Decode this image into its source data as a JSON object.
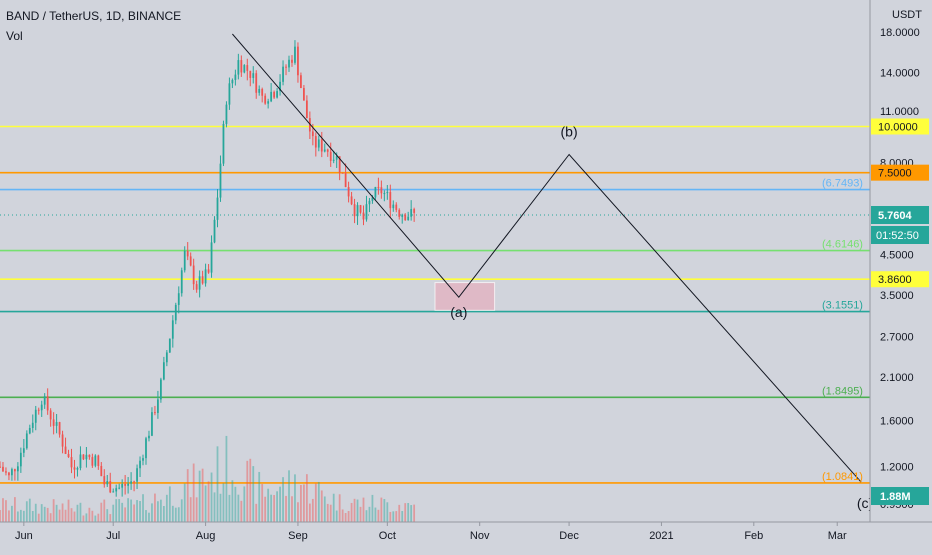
{
  "header": {
    "symbol_line": "BAND / TetherUS, 1D, BINANCE",
    "indicator": "Vol"
  },
  "price_axis": {
    "currency": "USDT",
    "ticks": [
      "18.0000",
      "14.0000",
      "11.0000",
      "8.0000",
      "4.5000",
      "3.5000",
      "2.7000",
      "2.1000",
      "1.6000",
      "1.2000",
      "0.9500"
    ]
  },
  "time_axis": {
    "labels": [
      "Jun",
      "Jul",
      "Aug",
      "Sep",
      "Oct",
      "Nov",
      "Dec",
      "2021",
      "Feb",
      "Mar"
    ]
  },
  "chart_data": {
    "type": "candlestick",
    "scale": "log",
    "ylim": [
      0.85,
      22
    ],
    "xlim": [
      "2020-05-24",
      "2021-03-12"
    ],
    "horizontal_levels": [
      {
        "value": 10.0,
        "label": "10.0000",
        "color": "#ffff3b",
        "label_style": "badge"
      },
      {
        "value": 7.5,
        "label": "7.5000",
        "color": "#ff9800",
        "label_style": "badge"
      },
      {
        "value": 6.7493,
        "label": "(6.7493)",
        "color": "#64b5f6",
        "label_style": "text"
      },
      {
        "value": 4.6146,
        "label": "(4.6146)",
        "color": "#76e070",
        "label_style": "text"
      },
      {
        "value": 3.86,
        "label": "3.8600",
        "color": "#ffff3b",
        "label_style": "badge"
      },
      {
        "value": 3.1551,
        "label": "(3.1551)",
        "color": "#26a69a",
        "label_style": "text"
      },
      {
        "value": 1.8495,
        "label": "(1.8495)",
        "color": "#4caf50",
        "label_style": "text"
      },
      {
        "value": 1.0841,
        "label": "(1.0841)",
        "color": "#ff9800",
        "label_style": "text"
      }
    ],
    "current_price": {
      "value": 5.7604,
      "label": "5.7604",
      "countdown": "01:52:50",
      "color": "#26a69a"
    },
    "volume_badge": "1.88M",
    "wave_path": [
      {
        "date": "2020-08-10",
        "price": 17.8
      },
      {
        "date": "2020-10-25",
        "price": 3.45,
        "label": "(a)"
      },
      {
        "date": "2020-12-01",
        "price": 8.4,
        "label": "(b)"
      },
      {
        "date": "2021-03-09",
        "price": 1.09,
        "label": "(c)"
      }
    ],
    "target_zone": {
      "from": "2020-10-17",
      "to": "2020-11-06",
      "high": 3.78,
      "low": 3.18
    },
    "price_path": [
      [
        "2020-05-24",
        1.2
      ],
      [
        "2020-05-27",
        1.12
      ],
      [
        "2020-05-30",
        1.25
      ],
      [
        "2020-06-03",
        1.55
      ],
      [
        "2020-06-07",
        1.85
      ],
      [
        "2020-06-10",
        1.65
      ],
      [
        "2020-06-14",
        1.4
      ],
      [
        "2020-06-17",
        1.2
      ],
      [
        "2020-06-21",
        1.3
      ],
      [
        "2020-06-25",
        1.25
      ],
      [
        "2020-06-28",
        1.08
      ],
      [
        "2020-07-03",
        1.05
      ],
      [
        "2020-07-08",
        1.1
      ],
      [
        "2020-07-13",
        1.5
      ],
      [
        "2020-07-17",
        2.0
      ],
      [
        "2020-07-21",
        3.0
      ],
      [
        "2020-07-25",
        4.5
      ],
      [
        "2020-07-29",
        3.7
      ],
      [
        "2020-08-02",
        4.0
      ],
      [
        "2020-08-05",
        6.5
      ],
      [
        "2020-08-08",
        12.0
      ],
      [
        "2020-08-12",
        15.0
      ],
      [
        "2020-08-16",
        14.0
      ],
      [
        "2020-08-20",
        12.0
      ],
      [
        "2020-08-24",
        12.5
      ],
      [
        "2020-08-28",
        14.5
      ],
      [
        "2020-08-31",
        16.0
      ],
      [
        "2020-09-03",
        11.5
      ],
      [
        "2020-09-06",
        9.0
      ],
      [
        "2020-09-10",
        8.8
      ],
      [
        "2020-09-14",
        8.2
      ],
      [
        "2020-09-17",
        7.0
      ],
      [
        "2020-09-20",
        6.0
      ],
      [
        "2020-09-23",
        5.6
      ],
      [
        "2020-09-26",
        6.5
      ],
      [
        "2020-09-29",
        6.7
      ],
      [
        "2020-10-02",
        6.3
      ],
      [
        "2020-10-05",
        5.9
      ],
      [
        "2020-10-08",
        5.8
      ],
      [
        "2020-10-10",
        5.76
      ]
    ],
    "volume_profile": [
      [
        "2020-05-24",
        0.3
      ],
      [
        "2020-06-20",
        0.25
      ],
      [
        "2020-07-10",
        0.3
      ],
      [
        "2020-07-25",
        0.6
      ],
      [
        "2020-08-08",
        1.0
      ],
      [
        "2020-08-12",
        0.9
      ],
      [
        "2020-08-20",
        0.55
      ],
      [
        "2020-09-02",
        0.7
      ],
      [
        "2020-09-15",
        0.35
      ],
      [
        "2020-10-10",
        0.3
      ]
    ]
  }
}
